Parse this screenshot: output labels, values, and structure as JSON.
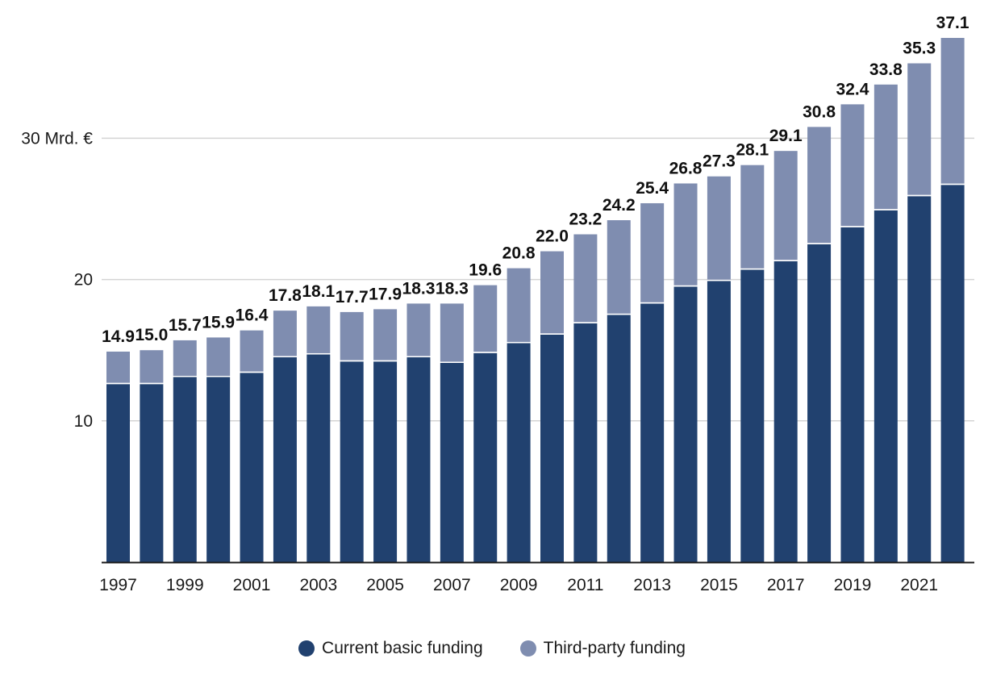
{
  "chart_data": {
    "type": "bar",
    "stacked": true,
    "title": "",
    "xlabel": "",
    "ylabel": "",
    "ylim": [
      0,
      38
    ],
    "y_ticks": [
      {
        "value": 10,
        "label": "10"
      },
      {
        "value": 20,
        "label": "20"
      },
      {
        "value": 30,
        "label": "30 Mrd. €"
      }
    ],
    "categories": [
      "1997",
      "1998",
      "1999",
      "2000",
      "2001",
      "2002",
      "2003",
      "2004",
      "2005",
      "2006",
      "2007",
      "2008",
      "2009",
      "2010",
      "2011",
      "2012",
      "2013",
      "2014",
      "2015",
      "2016",
      "2017",
      "2018",
      "2019",
      "2020",
      "2021",
      "2022"
    ],
    "x_tick_labels": [
      "1997",
      "",
      "1999",
      "",
      "2001",
      "",
      "2003",
      "",
      "2005",
      "",
      "2007",
      "",
      "2009",
      "",
      "2011",
      "",
      "2013",
      "",
      "2015",
      "",
      "2017",
      "",
      "2019",
      "",
      "2021",
      ""
    ],
    "series": [
      {
        "name": "Current basic funding",
        "color": "#21416f",
        "values": [
          12.6,
          12.6,
          13.1,
          13.1,
          13.4,
          14.5,
          14.7,
          14.2,
          14.2,
          14.5,
          14.1,
          14.8,
          15.5,
          16.1,
          16.9,
          17.5,
          18.3,
          19.5,
          19.9,
          20.7,
          21.3,
          22.5,
          23.7,
          24.9,
          25.9,
          26.7
        ]
      },
      {
        "name": "Third-party funding",
        "color": "#7f8db0",
        "values": [
          2.3,
          2.4,
          2.6,
          2.8,
          3.0,
          3.3,
          3.4,
          3.5,
          3.7,
          3.8,
          4.2,
          4.8,
          5.3,
          5.9,
          6.3,
          6.7,
          7.1,
          7.3,
          7.4,
          7.4,
          7.8,
          8.3,
          8.7,
          8.9,
          9.4,
          10.4
        ]
      }
    ],
    "totals": [
      "14.9",
      "15.0",
      "15.7",
      "15.9",
      "16.4",
      "17.8",
      "18.1",
      "17.7",
      "17.9",
      "18.3",
      "18.3",
      "19.6",
      "20.8",
      "22.0",
      "23.2",
      "24.2",
      "25.4",
      "26.8",
      "27.3",
      "28.1",
      "29.1",
      "30.8",
      "32.4",
      "33.8",
      "35.3",
      "37.1"
    ],
    "legend": {
      "position": "bottom-center",
      "items": [
        "Current basic funding",
        "Third-party funding"
      ]
    },
    "grid": true
  }
}
